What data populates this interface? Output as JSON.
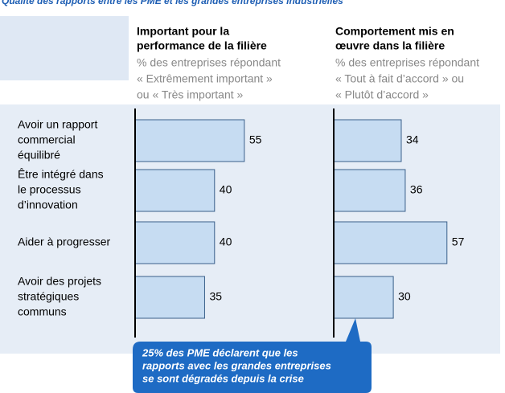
{
  "chart_data": [
    {
      "type": "bar",
      "page_title": "Qualité des rapports entre les PME et les grandes entreprises industrielles",
      "title": [
        "Important pour la",
        "performance de la filière"
      ],
      "subtitle": [
        "% des entreprises répondant",
        "« Extrêmement important »",
        "ou « Très important »"
      ],
      "categories": [
        [
          "Avoir un rapport",
          "commercial",
          "équilibré"
        ],
        [
          "Être intégré dans",
          "le processus",
          "d’innovation"
        ],
        [
          "Aider à progresser"
        ],
        [
          "Avoir des projets",
          "stratégiques",
          "communs"
        ]
      ],
      "values": [
        55,
        40,
        40,
        35
      ],
      "color": "#c6dcf2",
      "annotation": [
        "25% des PME déclarent que les",
        "rapports avec les grandes entreprises",
        "se sont dégradés depuis la crise"
      ]
    },
    {
      "type": "bar",
      "title": [
        "Comportement mis en",
        "œuvre dans la filière"
      ],
      "subtitle": [
        "% des entreprises répondant",
        "« Tout à fait d’accord » ou",
        "« Plutôt d’accord »"
      ],
      "values": [
        34,
        36,
        57,
        30
      ],
      "color": "#c6dcf2"
    }
  ]
}
